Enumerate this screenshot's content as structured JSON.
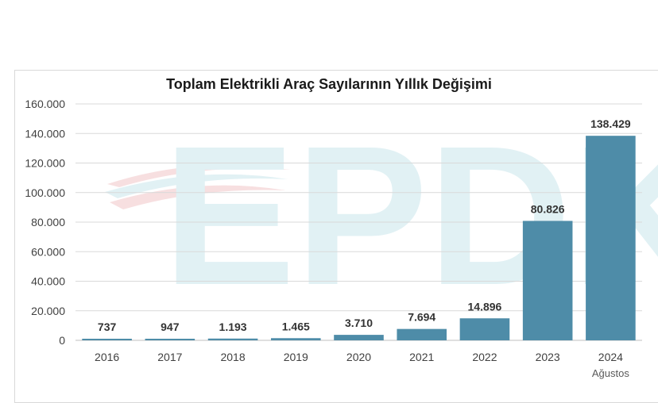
{
  "chart_data": {
    "type": "bar",
    "title": "Toplam Elektrikli Araç Sayılarının Yıllık Değişimi",
    "categories": [
      "2016",
      "2017",
      "2018",
      "2019",
      "2020",
      "2021",
      "2022",
      "2023",
      "2024"
    ],
    "category_sublabels": [
      "",
      "",
      "",
      "",
      "",
      "",
      "",
      "",
      "Ağustos"
    ],
    "values": [
      737,
      947,
      1193,
      1465,
      3710,
      7694,
      14896,
      80826,
      138429
    ],
    "value_labels": [
      "737",
      "947",
      "1.193",
      "1.465",
      "3.710",
      "7.694",
      "14.896",
      "80.826",
      "138.429"
    ],
    "ylim": [
      0,
      160000
    ],
    "yticks": [
      0,
      20000,
      40000,
      60000,
      80000,
      100000,
      120000,
      140000,
      160000
    ],
    "ytick_labels": [
      "0",
      "20.000",
      "40.000",
      "60.000",
      "80.000",
      "100.000",
      "120.000",
      "140.000",
      "160.000"
    ],
    "xlabel": "",
    "ylabel": "",
    "grid": true,
    "bar_color": "#4e8ca8"
  },
  "watermark": {
    "text": "EPDK",
    "colors": [
      "#dceff3",
      "#f6dadb"
    ]
  }
}
